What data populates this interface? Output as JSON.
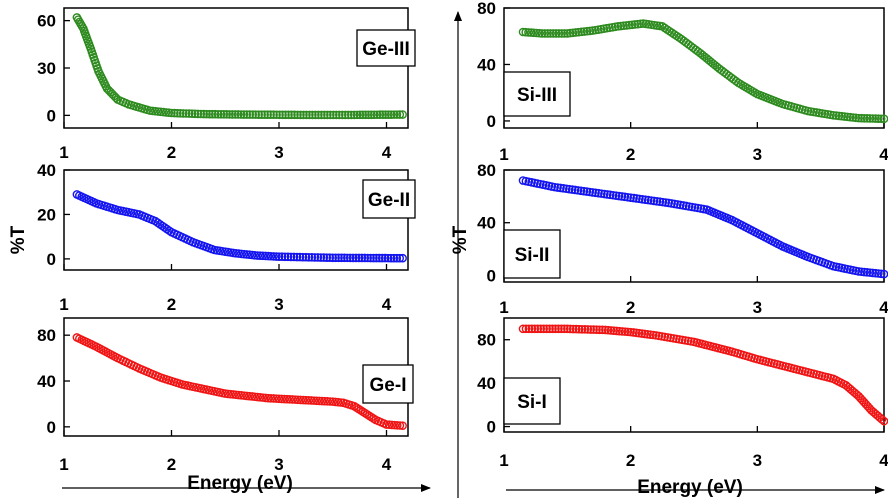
{
  "chart_data": [
    {
      "type": "scatter",
      "panel_label": "Ge-III",
      "xlim": [
        1,
        4.2
      ],
      "ylim": [
        -8,
        68
      ],
      "xticks": [
        "1",
        "2",
        "3",
        "4"
      ],
      "yticks": [
        "0",
        "30",
        "60"
      ],
      "color": "#2e8b1f",
      "points": [
        [
          1.12,
          62
        ],
        [
          1.18,
          55
        ],
        [
          1.25,
          42
        ],
        [
          1.32,
          28
        ],
        [
          1.4,
          17
        ],
        [
          1.5,
          10
        ],
        [
          1.6,
          7
        ],
        [
          1.8,
          3
        ],
        [
          2.0,
          1.5
        ],
        [
          2.3,
          0.8
        ],
        [
          2.7,
          0.5
        ],
        [
          3.2,
          0.3
        ],
        [
          3.7,
          0.3
        ],
        [
          4.15,
          0.5
        ]
      ]
    },
    {
      "type": "scatter",
      "panel_label": "Ge-II",
      "xlim": [
        1,
        4.2
      ],
      "ylim": [
        -5,
        40
      ],
      "xticks": [
        "1",
        "2",
        "3",
        "4"
      ],
      "yticks": [
        "0",
        "20",
        "40"
      ],
      "color": "#1515f0",
      "points": [
        [
          1.12,
          29
        ],
        [
          1.3,
          25
        ],
        [
          1.5,
          22
        ],
        [
          1.7,
          20
        ],
        [
          1.85,
          17
        ],
        [
          2.0,
          12
        ],
        [
          2.2,
          7.5
        ],
        [
          2.4,
          4
        ],
        [
          2.6,
          2.5
        ],
        [
          2.8,
          1.5
        ],
        [
          3.0,
          1
        ],
        [
          3.5,
          0.5
        ],
        [
          4.15,
          0.3
        ]
      ]
    },
    {
      "type": "scatter",
      "panel_label": "Ge-I",
      "xlim": [
        1,
        4.2
      ],
      "ylim": [
        -8,
        95
      ],
      "xticks": [
        "1",
        "2",
        "3",
        "4"
      ],
      "yticks": [
        "0",
        "40",
        "80"
      ],
      "color": "#f01515",
      "points": [
        [
          1.12,
          78
        ],
        [
          1.3,
          70
        ],
        [
          1.5,
          60
        ],
        [
          1.7,
          51
        ],
        [
          1.9,
          43
        ],
        [
          2.1,
          37
        ],
        [
          2.3,
          33
        ],
        [
          2.5,
          29
        ],
        [
          2.7,
          27
        ],
        [
          2.9,
          25
        ],
        [
          3.1,
          24
        ],
        [
          3.3,
          23
        ],
        [
          3.5,
          22
        ],
        [
          3.6,
          21
        ],
        [
          3.7,
          18
        ],
        [
          3.8,
          12
        ],
        [
          3.9,
          6
        ],
        [
          4.0,
          2
        ],
        [
          4.15,
          1
        ]
      ]
    },
    {
      "type": "scatter",
      "panel_label": "Si-III",
      "xlim": [
        1,
        4
      ],
      "ylim": [
        -5,
        80
      ],
      "xticks": [
        "1",
        "2",
        "3",
        "4"
      ],
      "yticks": [
        "0",
        "40",
        "80"
      ],
      "color": "#2e8b1f",
      "points": [
        [
          1.15,
          63
        ],
        [
          1.3,
          62
        ],
        [
          1.5,
          62
        ],
        [
          1.7,
          64
        ],
        [
          1.9,
          67
        ],
        [
          2.1,
          69
        ],
        [
          2.25,
          67
        ],
        [
          2.4,
          58
        ],
        [
          2.55,
          48
        ],
        [
          2.7,
          37
        ],
        [
          2.85,
          27
        ],
        [
          3.0,
          19
        ],
        [
          3.2,
          12
        ],
        [
          3.4,
          7
        ],
        [
          3.6,
          4
        ],
        [
          3.8,
          2
        ],
        [
          4.0,
          1.5
        ]
      ]
    },
    {
      "type": "scatter",
      "panel_label": "Si-II",
      "xlim": [
        1,
        4
      ],
      "ylim": [
        -5,
        80
      ],
      "xticks": [
        "1",
        "2",
        "3",
        "4"
      ],
      "yticks": [
        "0",
        "40",
        "80"
      ],
      "color": "#1515f0",
      "points": [
        [
          1.15,
          72
        ],
        [
          1.4,
          67
        ],
        [
          1.7,
          63
        ],
        [
          2.0,
          59
        ],
        [
          2.3,
          55
        ],
        [
          2.6,
          50
        ],
        [
          2.8,
          42
        ],
        [
          3.0,
          32
        ],
        [
          3.2,
          22
        ],
        [
          3.4,
          14
        ],
        [
          3.6,
          7
        ],
        [
          3.8,
          3
        ],
        [
          4.0,
          1
        ]
      ]
    },
    {
      "type": "scatter",
      "panel_label": "Si-I",
      "xlim": [
        1,
        4
      ],
      "ylim": [
        -5,
        100
      ],
      "xticks": [
        "1",
        "2",
        "3",
        "4"
      ],
      "yticks": [
        "0",
        "40",
        "80"
      ],
      "color": "#f01515",
      "points": [
        [
          1.15,
          90
        ],
        [
          1.5,
          90
        ],
        [
          1.8,
          89
        ],
        [
          2.0,
          87
        ],
        [
          2.2,
          84
        ],
        [
          2.5,
          78
        ],
        [
          2.8,
          69
        ],
        [
          3.0,
          62
        ],
        [
          3.2,
          56
        ],
        [
          3.4,
          50
        ],
        [
          3.6,
          44
        ],
        [
          3.7,
          38
        ],
        [
          3.8,
          28
        ],
        [
          3.9,
          15
        ],
        [
          4.0,
          5
        ]
      ]
    }
  ],
  "y_axis_label": "%T",
  "x_axis_label": "Energy (eV)"
}
